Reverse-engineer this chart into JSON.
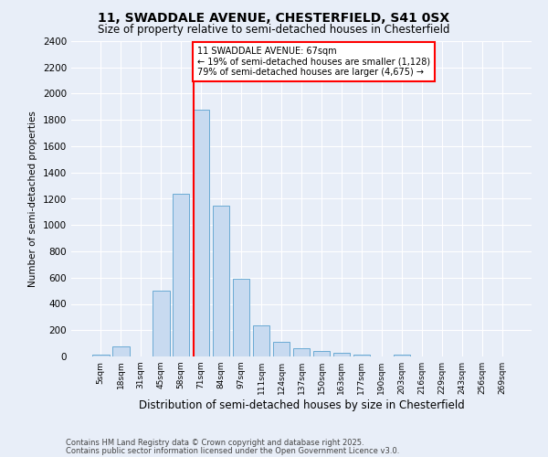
{
  "title1": "11, SWADDALE AVENUE, CHESTERFIELD, S41 0SX",
  "title2": "Size of property relative to semi-detached houses in Chesterfield",
  "xlabel": "Distribution of semi-detached houses by size in Chesterfield",
  "ylabel": "Number of semi-detached properties",
  "categories": [
    "5sqm",
    "18sqm",
    "31sqm",
    "45sqm",
    "58sqm",
    "71sqm",
    "84sqm",
    "97sqm",
    "111sqm",
    "124sqm",
    "137sqm",
    "150sqm",
    "163sqm",
    "177sqm",
    "190sqm",
    "203sqm",
    "216sqm",
    "229sqm",
    "243sqm",
    "256sqm",
    "269sqm"
  ],
  "values": [
    15,
    80,
    0,
    500,
    1240,
    1880,
    1150,
    590,
    240,
    110,
    60,
    40,
    25,
    15,
    0,
    15,
    0,
    0,
    0,
    0,
    0
  ],
  "bar_color": "#c8daf0",
  "bar_edge_color": "#6aaad4",
  "annotation_line1": "11 SWADDALE AVENUE: 67sqm",
  "annotation_line2": "← 19% of semi-detached houses are smaller (1,128)",
  "annotation_line3": "79% of semi-detached houses are larger (4,675) →",
  "vline_x_index": 4.65,
  "vline_color": "red",
  "ylim": [
    0,
    2400
  ],
  "yticks": [
    0,
    200,
    400,
    600,
    800,
    1000,
    1200,
    1400,
    1600,
    1800,
    2000,
    2200,
    2400
  ],
  "footnote1": "Contains HM Land Registry data © Crown copyright and database right 2025.",
  "footnote2": "Contains public sector information licensed under the Open Government Licence v3.0.",
  "bg_color": "#e8eef8",
  "plot_bg_color": "#e8eef8"
}
